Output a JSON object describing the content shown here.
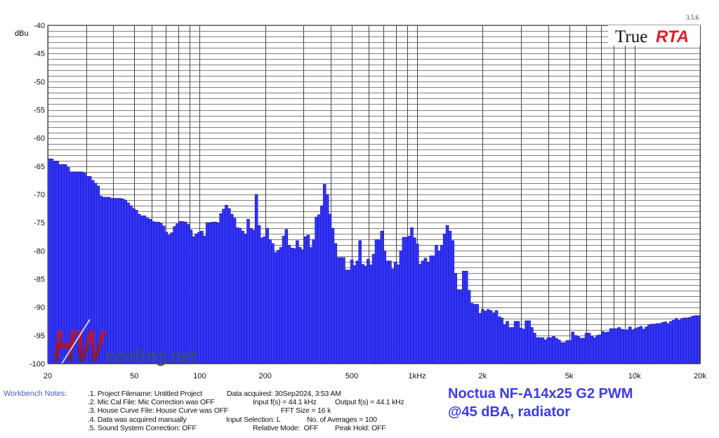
{
  "chart_data": {
    "type": "bar",
    "title": "Noctua NF-A14x25 G2 PWM @45 dBA, radiator",
    "ylabel": "dBu",
    "xlabel": "",
    "xscale": "log",
    "xlim": [
      20,
      20000
    ],
    "ylim": [
      -100,
      -40
    ],
    "grid": true,
    "bands_per_octave": 24,
    "start_frequency_hz": 20,
    "ytick_values": [
      -40,
      -45,
      -50,
      -55,
      -60,
      -65,
      -70,
      -75,
      -80,
      -85,
      -90,
      -95,
      -100
    ],
    "ytick_labels": [
      "-40",
      "-45",
      "-50",
      "-55",
      "-60",
      "-65",
      "-70",
      "-75",
      "-80",
      "-85",
      "-90",
      "-95",
      "-100"
    ],
    "xtick_values": [
      20,
      50,
      100,
      200,
      500,
      1000,
      2000,
      5000,
      10000,
      20000
    ],
    "xtick_labels": [
      "20",
      "50",
      "100",
      "200",
      "500",
      "1kHz",
      "2k",
      "5k",
      "10k",
      "20k"
    ],
    "values": [
      -63.7,
      -63.7,
      -64.1,
      -64.1,
      -64.7,
      -64.7,
      -64.7,
      -65.2,
      -66,
      -66,
      -66,
      -66,
      -66,
      -66.2,
      -66.8,
      -66.8,
      -67.5,
      -68,
      -68.5,
      -70.3,
      -70.5,
      -70.5,
      -70.5,
      -70.7,
      -70.7,
      -70.7,
      -70.7,
      -70.8,
      -71,
      -71.5,
      -72,
      -72.5,
      -72.8,
      -73.5,
      -73.8,
      -73.8,
      -74.2,
      -74.4,
      -74.8,
      -74.9,
      -74.9,
      -75.1,
      -75.6,
      -76.7,
      -77.2,
      -76.8,
      -75.7,
      -75.2,
      -74.8,
      -74.8,
      -74.9,
      -75.3,
      -76.3,
      -77.5,
      -77,
      -76.7,
      -76.5,
      -77.4,
      -75,
      -75,
      -74.9,
      -74.9,
      -75,
      -73.4,
      -72.6,
      -71.9,
      -72.5,
      -73.5,
      -74.2,
      -75.9,
      -76,
      -76.5,
      -77,
      -74.4,
      -76,
      -76.3,
      -70,
      -75.5,
      -77.7,
      -77.5,
      -76,
      -78,
      -78.7,
      -80.3,
      -79.9,
      -79.4,
      -77.4,
      -76.2,
      -79,
      -79.5,
      -79.6,
      -78.2,
      -79.4,
      -79.8,
      -77.5,
      -77.2,
      -79.4,
      -78,
      -74,
      -73.6,
      -72,
      -68.2,
      -70,
      -73.5,
      -76,
      -78.7,
      -81.2,
      -81.2,
      -81.2,
      -83.4,
      -83.4,
      -81.6,
      -82.6,
      -81.8,
      -78.2,
      -82.4,
      -82.7,
      -81.5,
      -82.5,
      -80.6,
      -78,
      -78,
      -76.5,
      -80,
      -81.8,
      -81.8,
      -83.2,
      -82,
      -82.5,
      -80,
      -77.6,
      -77.6,
      -77.4,
      -75.9,
      -77.7,
      -78.8,
      -82.4,
      -81.8,
      -81.3,
      -82,
      -80.9,
      -80.9,
      -79,
      -80,
      -79,
      -77,
      -75.5,
      -76.5,
      -78.2,
      -84,
      -86.9,
      -86.9,
      -83.6,
      -83.6,
      -87,
      -89.3,
      -89.5,
      -89.5,
      -91.1,
      -90.4,
      -90.7,
      -90.4,
      -90.6,
      -91,
      -90.6,
      -91.7,
      -91.9,
      -93.1,
      -92.5,
      -93.6,
      -93.6,
      -92.5,
      -92.5,
      -93.7,
      -93.9,
      -92.4,
      -92.4,
      -93.6,
      -94.6,
      -95.4,
      -95.4,
      -95.4,
      -95.8,
      -95.4,
      -95.4,
      -95.2,
      -95.5,
      -95.8,
      -96.3,
      -96.3,
      -95.9,
      -95.9,
      -94.4,
      -95,
      -95.2,
      -95.5,
      -95.5,
      -94.6,
      -94.6,
      -95.1,
      -95.4,
      -95,
      -94.9,
      -94.3,
      -94.5,
      -94.4,
      -93.8,
      -93.8,
      -93.8,
      -93.6,
      -93.9,
      -94,
      -94,
      -93.5,
      -94,
      -93.8,
      -93.6,
      -93.4,
      -93.9,
      -93.5,
      -93.1,
      -93,
      -93,
      -92.9,
      -92.9,
      -92.7,
      -92.6,
      -92.9,
      -92.5,
      -92.3,
      -92,
      -92.3,
      -92,
      -91.9,
      -91.9,
      -91.8,
      -91.6,
      -91.5,
      -91.5,
      -91.7
    ],
    "bar_color": "#3434ff",
    "bar_edge_color": "#1a1aa8"
  },
  "header": {
    "version": "3.5.6",
    "logo_text_true": "True",
    "logo_text_rta": "RTA"
  },
  "watermark": {
    "text_hw": "HW",
    "text_site": "cooling.net"
  },
  "title": {
    "line1": "Noctua NF-A14x25 G2 PWM",
    "line2": "@45 dBA, radiator"
  },
  "notes": {
    "label": "Workbench Notes:",
    "row1": {
      "a": ".1. Project Filename: Untitled Project",
      "b": "Data acquired: 30Sep2024, 3:53 AM"
    },
    "row2": {
      "a": ".2. Mic Cal File: Mic Correction was OFF",
      "b": "Input f(s) = 44.1 kHz",
      "c": "Output f(s) = 44.1 kHz"
    },
    "row3": {
      "a": ".3. House Curve File: House Curve was OFF",
      "b": "FFT Size = 16 k"
    },
    "row4": {
      "a": ".4. Data was acquired manually",
      "b": "Input Selection: L",
      "c": "No. of Averages = 100"
    },
    "row5": {
      "a": ".5. Sound System Correction: OFF",
      "b": "Relative Mode:  OFF",
      "c": "Peak Hold: OFF"
    }
  }
}
